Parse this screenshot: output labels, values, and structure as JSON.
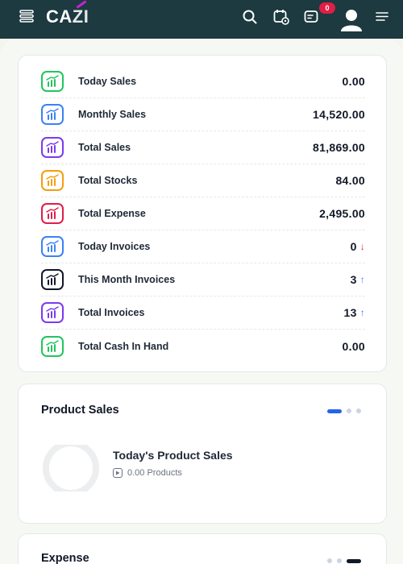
{
  "header": {
    "logo_left": "CA",
    "logo_right": "ZI",
    "badge_count": "0"
  },
  "stats": [
    {
      "label": "Today Sales",
      "value": "0.00",
      "color": "#22c55e",
      "arrow": ""
    },
    {
      "label": "Monthly Sales",
      "value": "14,520.00",
      "color": "#3b82f6",
      "arrow": ""
    },
    {
      "label": "Total Sales",
      "value": "81,869.00",
      "color": "#7c3aed",
      "arrow": ""
    },
    {
      "label": "Total Stocks",
      "value": "84.00",
      "color": "#f59e0b",
      "arrow": ""
    },
    {
      "label": "Total Expense",
      "value": "2,495.00",
      "color": "#e11d48",
      "arrow": ""
    },
    {
      "label": "Today Invoices",
      "value": "0",
      "color": "#3b82f6",
      "arrow": "↓",
      "arrow_color": "#e11d48"
    },
    {
      "label": "This Month Invoices",
      "value": "3",
      "color": "#111827",
      "arrow": "↑",
      "arrow_color": "#3b82f6"
    },
    {
      "label": "Total Invoices",
      "value": "13",
      "color": "#7c3aed",
      "arrow": "↑",
      "arrow_color": "#3b82f6"
    },
    {
      "label": "Total Cash In Hand",
      "value": "0.00",
      "color": "#22c55e",
      "arrow": ""
    }
  ],
  "product_sales": {
    "title": "Product Sales",
    "subtitle": "Today's Product Sales",
    "products_text": "0.00 Products"
  },
  "expense": {
    "title": "Expense"
  },
  "colors": {
    "header_bg": "#1c3a3f",
    "accent_blue": "#2563eb",
    "badge": "#e11d48"
  }
}
